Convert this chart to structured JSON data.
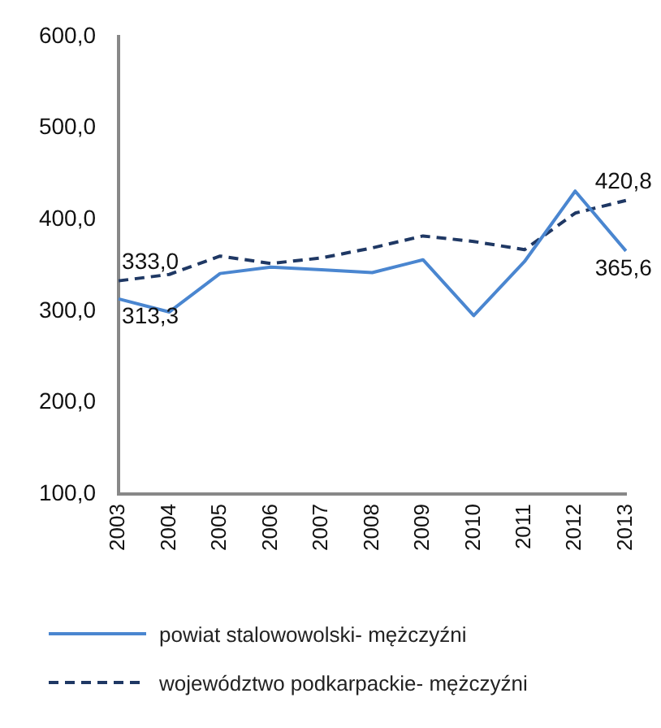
{
  "chart_data": {
    "type": "line",
    "categories": [
      "2003",
      "2004",
      "2005",
      "2006",
      "2007",
      "2008",
      "2009",
      "2010",
      "2011",
      "2012",
      "2013"
    ],
    "series": [
      {
        "name": "powiat stalowowolski- mężczyźni",
        "color": "#4a86d0",
        "line_style": "solid",
        "values": [
          313.3,
          299,
          341,
          348,
          345,
          342,
          356,
          295,
          354,
          431,
          365.6
        ],
        "value_labels": [
          "313,3",
          null,
          null,
          null,
          null,
          null,
          null,
          null,
          null,
          null,
          "365,6"
        ]
      },
      {
        "name": "województwo podkarpackie- mężczyźni",
        "color": "#1f3864",
        "line_style": "dashed",
        "values": [
          333.0,
          340,
          360,
          352,
          358,
          369,
          382,
          376,
          367,
          407,
          420.8
        ],
        "value_labels": [
          "333,0",
          null,
          null,
          null,
          null,
          null,
          null,
          null,
          null,
          null,
          "420,8"
        ]
      }
    ],
    "ylim": [
      100,
      600
    ],
    "yticks": [
      {
        "value": 100,
        "label": "100,0"
      },
      {
        "value": 200,
        "label": "200,0"
      },
      {
        "value": 300,
        "label": "300,0"
      },
      {
        "value": 400,
        "label": "400,0"
      },
      {
        "value": 500,
        "label": "500,0"
      },
      {
        "value": 600,
        "label": "600,0"
      }
    ],
    "grid": false,
    "legend": "bottom",
    "marker": "none"
  }
}
